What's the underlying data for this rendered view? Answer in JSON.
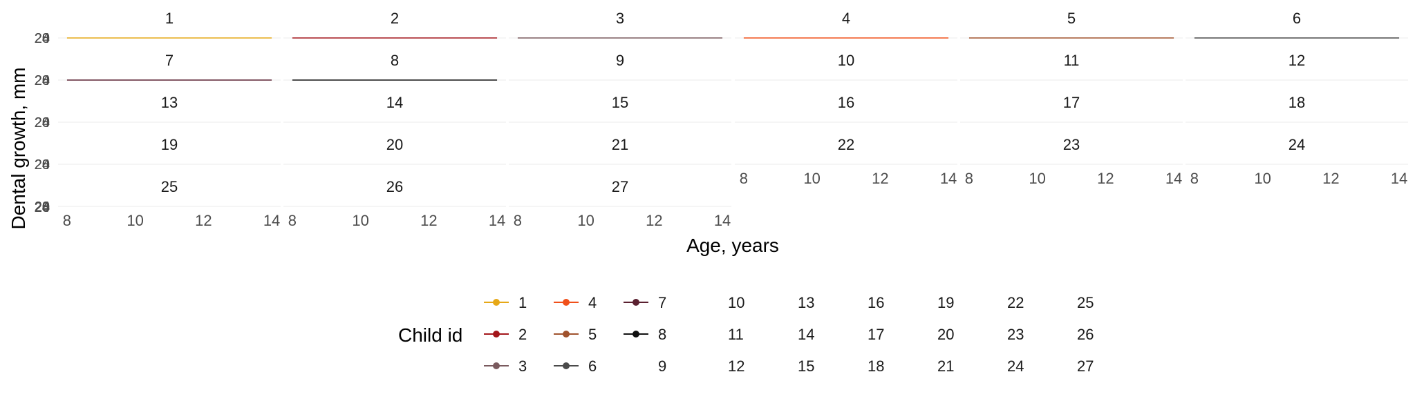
{
  "chart_data": {
    "type": "line",
    "xlabel": "Age, years",
    "ylabel": "Dental growth, mm",
    "x_ticks": [
      8,
      10,
      12,
      14
    ],
    "xlim": [
      7.9,
      14.1
    ],
    "y_tick_labels": [
      "20",
      "24",
      "28"
    ],
    "grid": true,
    "facet_columns": 6,
    "facets": [
      {
        "label": "1",
        "color": "#E6A817",
        "x": [
          8,
          14
        ],
        "y": [
          24,
          24
        ]
      },
      {
        "label": "2",
        "color": "#A3161B",
        "x": [
          8,
          14
        ],
        "y": [
          24,
          24
        ]
      },
      {
        "label": "3",
        "color": "#7A5A5E",
        "x": [
          8,
          14
        ],
        "y": [
          24,
          24
        ]
      },
      {
        "label": "4",
        "color": "#F0501A",
        "x": [
          8,
          14
        ],
        "y": [
          24,
          24
        ]
      },
      {
        "label": "5",
        "color": "#A0522D",
        "x": [
          8,
          14
        ],
        "y": [
          24,
          24
        ]
      },
      {
        "label": "6",
        "color": "#4A4A4A",
        "x": [
          8,
          14
        ],
        "y": [
          24,
          24
        ]
      },
      {
        "label": "7",
        "color": "#5A2030",
        "x": [
          8,
          14
        ],
        "y": [
          24,
          24
        ]
      },
      {
        "label": "8",
        "color": "#111111",
        "x": [
          8,
          14
        ],
        "y": [
          24,
          24
        ]
      },
      {
        "label": "9"
      },
      {
        "label": "10"
      },
      {
        "label": "11"
      },
      {
        "label": "12"
      },
      {
        "label": "13"
      },
      {
        "label": "14"
      },
      {
        "label": "15"
      },
      {
        "label": "16"
      },
      {
        "label": "17"
      },
      {
        "label": "18"
      },
      {
        "label": "19"
      },
      {
        "label": "20"
      },
      {
        "label": "21"
      },
      {
        "label": "22"
      },
      {
        "label": "23"
      },
      {
        "label": "24"
      },
      {
        "label": "25"
      },
      {
        "label": "26"
      },
      {
        "label": "27"
      }
    ],
    "legend": {
      "title": "Child id",
      "position": "bottom",
      "entries": [
        {
          "label": "1",
          "color": "#E6A817"
        },
        {
          "label": "2",
          "color": "#A3161B"
        },
        {
          "label": "3",
          "color": "#7A5A5E"
        },
        {
          "label": "4",
          "color": "#F0501A"
        },
        {
          "label": "5",
          "color": "#A0522D"
        },
        {
          "label": "6",
          "color": "#4A4A4A"
        },
        {
          "label": "7",
          "color": "#5A2030"
        },
        {
          "label": "8",
          "color": "#111111"
        },
        {
          "label": "9"
        },
        {
          "label": "10"
        },
        {
          "label": "11"
        },
        {
          "label": "12"
        },
        {
          "label": "13"
        },
        {
          "label": "14"
        },
        {
          "label": "15"
        },
        {
          "label": "16"
        },
        {
          "label": "17"
        },
        {
          "label": "18"
        },
        {
          "label": "19"
        },
        {
          "label": "20"
        },
        {
          "label": "21"
        },
        {
          "label": "22"
        },
        {
          "label": "23"
        },
        {
          "label": "24"
        },
        {
          "label": "25"
        },
        {
          "label": "26"
        },
        {
          "label": "27"
        }
      ]
    }
  }
}
